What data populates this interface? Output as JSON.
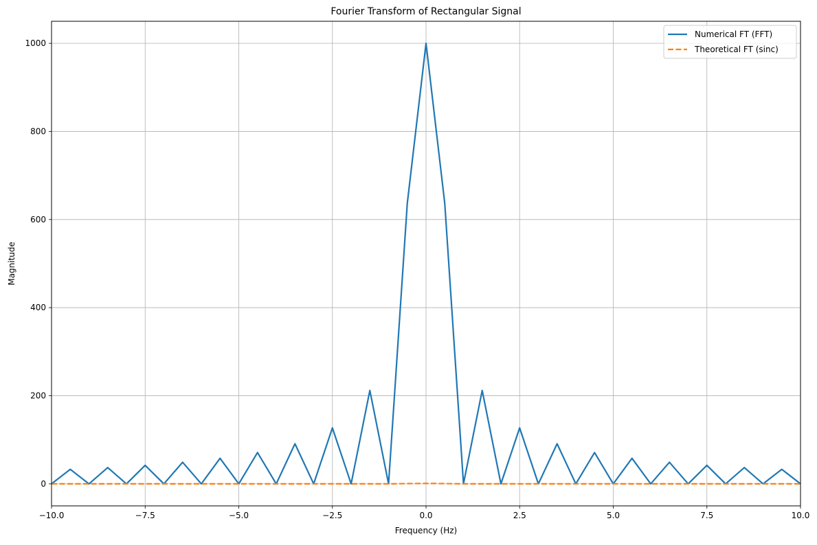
{
  "chart_data": {
    "type": "line",
    "title": "Fourier Transform of Rectangular Signal",
    "xlabel": "Frequency (Hz)",
    "ylabel": "Magnitude",
    "xlim": [
      -10,
      10
    ],
    "ylim": [
      -50,
      1050
    ],
    "grid": true,
    "legend_position": "top-right",
    "x_ticks": [
      -10,
      -7.5,
      -5,
      -2.5,
      0,
      2.5,
      5,
      7.5,
      10
    ],
    "x_tick_labels": [
      "−10.0",
      "−7.5",
      "−5.0",
      "−2.5",
      "0.0",
      "2.5",
      "5.0",
      "7.5",
      "10.0"
    ],
    "y_ticks": [
      0,
      200,
      400,
      600,
      800,
      1000
    ],
    "y_tick_labels": [
      "0",
      "200",
      "400",
      "600",
      "800",
      "1000"
    ],
    "series": [
      {
        "name": "Numerical FT (FFT)",
        "color": "#1f77b4",
        "style": "solid",
        "x": [
          -10,
          -9.5,
          -9,
          -8.5,
          -8,
          -7.5,
          -7,
          -6.5,
          -6,
          -5.5,
          -5,
          -4.5,
          -4,
          -3.5,
          -3,
          -2.5,
          -2,
          -1.5,
          -1,
          -0.5,
          0,
          0.5,
          1,
          1.5,
          2,
          2.5,
          3,
          3.5,
          4,
          4.5,
          5,
          5.5,
          6,
          6.5,
          7,
          7.5,
          8,
          8.5,
          9,
          9.5,
          10
        ],
        "y": [
          0,
          33,
          0,
          37,
          0,
          42,
          0,
          49,
          0,
          58,
          0,
          71,
          0,
          91,
          0,
          127,
          0,
          212,
          0,
          637,
          1000,
          637,
          0,
          212,
          0,
          127,
          0,
          91,
          0,
          71,
          0,
          58,
          0,
          49,
          0,
          42,
          0,
          37,
          0,
          33,
          0
        ]
      },
      {
        "name": "Theoretical FT (sinc)",
        "color": "#ff7f0e",
        "style": "dashed",
        "x": [
          -10,
          -5,
          -1,
          -0.5,
          0,
          0.5,
          1,
          5,
          10
        ],
        "y": [
          0,
          0,
          0,
          0.6,
          1,
          0.6,
          0,
          0,
          0
        ]
      }
    ]
  }
}
